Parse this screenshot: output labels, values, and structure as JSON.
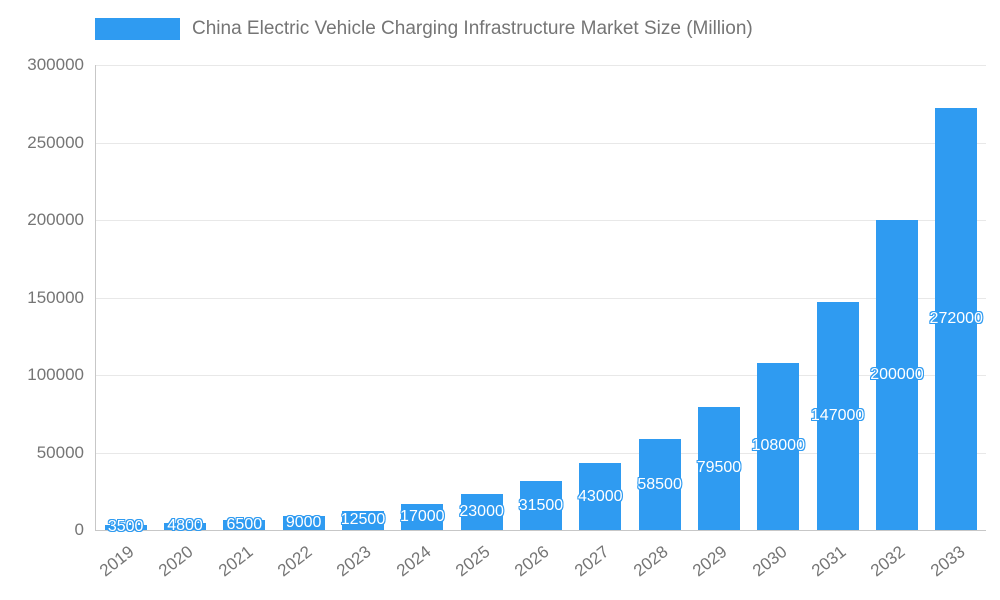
{
  "colors": {
    "bar": "#2f9bf1",
    "axis": "#c7c7c7",
    "grid": "#e8e8e8",
    "text": "#757575",
    "label_text": "#ffffff",
    "label_outline": "#2f9bf1"
  },
  "legend": {
    "label": "China Electric Vehicle Charging Infrastructure Market Size (Million)"
  },
  "chart_data": {
    "type": "bar",
    "title": "China Electric Vehicle Charging Infrastructure Market Size (Million)",
    "categories": [
      "2019",
      "2020",
      "2021",
      "2022",
      "2023",
      "2024",
      "2025",
      "2026",
      "2027",
      "2028",
      "2029",
      "2030",
      "2031",
      "2032",
      "2033"
    ],
    "values": [
      3500,
      4800,
      6500,
      9000,
      12500,
      17000,
      23000,
      31500,
      43000,
      58500,
      79500,
      108000,
      147000,
      200000,
      272000
    ],
    "value_labels": [
      "3500",
      "4800",
      "6500",
      "9000",
      "12500",
      "17000",
      "23000",
      "31500",
      "43000",
      "58500",
      "79500",
      "108000",
      "147000",
      "200000",
      "272000"
    ],
    "xlabel": "",
    "ylabel": "",
    "ylim": [
      0,
      300000
    ],
    "ytick_interval": 50000,
    "ytick_labels": [
      "0",
      "50000",
      "100000",
      "150000",
      "200000",
      "250000",
      "300000"
    ],
    "grid": true,
    "legend_position": "top",
    "bar_label_position": "inside-center",
    "x_label_rotation_deg": -38
  }
}
